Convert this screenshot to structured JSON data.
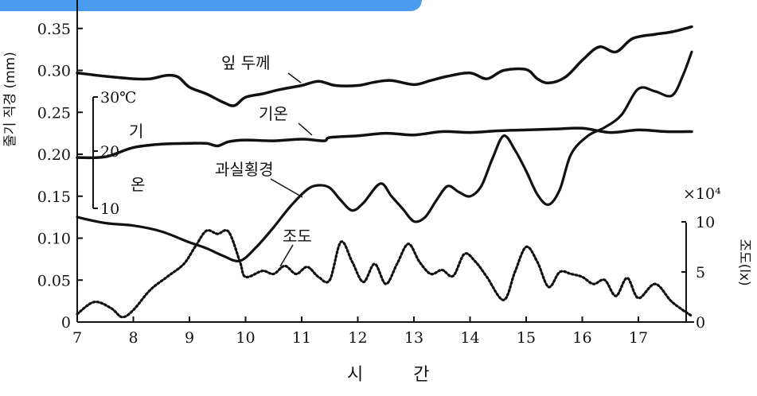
{
  "banner_color": "#4a9cf0",
  "chart_data": {
    "type": "line",
    "xlabel": "시 간",
    "xlim": [
      7,
      18
    ],
    "x_ticks": [
      "7",
      "8",
      "9",
      "10",
      "11",
      "12",
      "13",
      "14",
      "15",
      "16",
      "17"
    ],
    "ylim": [
      0,
      0.37
    ],
    "y_ticks": [
      "0",
      "0.05",
      "0.10",
      "0.15",
      "0.20",
      "0.25",
      "0.30",
      "0.35"
    ],
    "ylabel": "줄기 직경 (mm)",
    "temp_axis": {
      "label_top": "기",
      "label_bottom": "온",
      "ticks": [
        "30℃",
        "20",
        "10"
      ]
    },
    "lux_axis": {
      "label": "조도(lx)",
      "multiplier": "×10⁴",
      "ticks": [
        "10",
        "5",
        "0"
      ]
    },
    "annotations": [
      "잎 두께",
      "기온",
      "과실횡경",
      "조도"
    ],
    "series": [
      {
        "name": "잎 두께",
        "x": [
          7.0,
          7.5,
          8.0,
          8.3,
          8.6,
          8.8,
          9.0,
          9.3,
          9.6,
          9.8,
          10.0,
          10.3,
          10.6,
          11.0,
          11.3,
          11.6,
          12.0,
          12.3,
          12.6,
          13.0,
          13.3,
          13.6,
          14.0,
          14.3,
          14.6,
          15.0,
          15.2,
          15.4,
          15.7,
          16.0,
          16.3,
          16.6,
          16.9,
          17.3,
          17.6,
          17.95
        ],
        "y": [
          0.297,
          0.293,
          0.29,
          0.29,
          0.294,
          0.292,
          0.28,
          0.272,
          0.262,
          0.258,
          0.268,
          0.272,
          0.277,
          0.282,
          0.287,
          0.282,
          0.282,
          0.286,
          0.288,
          0.283,
          0.288,
          0.293,
          0.297,
          0.29,
          0.3,
          0.301,
          0.29,
          0.285,
          0.292,
          0.312,
          0.328,
          0.322,
          0.338,
          0.343,
          0.346,
          0.352
        ]
      },
      {
        "name": "기온",
        "x": [
          7.0,
          7.5,
          8.0,
          8.5,
          9.0,
          9.3,
          9.5,
          9.7,
          10.0,
          10.5,
          11.0,
          11.4,
          11.5,
          12.0,
          12.5,
          13.0,
          13.5,
          14.0,
          14.5,
          15.0,
          15.5,
          16.0,
          16.5,
          17.0,
          17.5,
          17.95
        ],
        "y": [
          0.196,
          0.197,
          0.208,
          0.212,
          0.213,
          0.213,
          0.21,
          0.215,
          0.217,
          0.216,
          0.218,
          0.216,
          0.22,
          0.222,
          0.225,
          0.223,
          0.227,
          0.226,
          0.228,
          0.229,
          0.23,
          0.231,
          0.226,
          0.229,
          0.227,
          0.227
        ]
      },
      {
        "name": "과실횡경",
        "x": [
          7.0,
          7.5,
          8.0,
          8.5,
          9.0,
          9.3,
          9.6,
          9.9,
          10.2,
          10.5,
          10.8,
          11.1,
          11.3,
          11.5,
          11.7,
          11.9,
          12.1,
          12.4,
          12.6,
          12.8,
          13.0,
          13.2,
          13.4,
          13.6,
          13.8,
          14.0,
          14.2,
          14.4,
          14.6,
          14.8,
          15.0,
          15.2,
          15.4,
          15.6,
          15.8,
          16.1,
          16.4,
          16.7,
          17.0,
          17.3,
          17.6,
          17.8,
          17.95
        ],
        "y": [
          0.125,
          0.118,
          0.115,
          0.108,
          0.095,
          0.088,
          0.079,
          0.073,
          0.09,
          0.113,
          0.138,
          0.158,
          0.163,
          0.16,
          0.145,
          0.133,
          0.142,
          0.165,
          0.15,
          0.135,
          0.12,
          0.125,
          0.145,
          0.162,
          0.155,
          0.15,
          0.162,
          0.195,
          0.222,
          0.205,
          0.18,
          0.152,
          0.14,
          0.158,
          0.2,
          0.222,
          0.232,
          0.247,
          0.278,
          0.275,
          0.27,
          0.295,
          0.322
        ]
      },
      {
        "name": "조도",
        "x": [
          7.0,
          7.3,
          7.6,
          7.8,
          8.0,
          8.3,
          8.6,
          8.9,
          9.1,
          9.3,
          9.5,
          9.7,
          9.9,
          10.0,
          10.3,
          10.5,
          10.7,
          10.9,
          11.1,
          11.3,
          11.5,
          11.7,
          11.9,
          12.1,
          12.3,
          12.5,
          12.7,
          12.9,
          13.1,
          13.3,
          13.5,
          13.7,
          13.9,
          14.1,
          14.3,
          14.6,
          14.8,
          15.0,
          15.2,
          15.4,
          15.6,
          15.8,
          16.0,
          16.2,
          16.4,
          16.6,
          16.8,
          17.0,
          17.3,
          17.6,
          17.95
        ],
        "y": [
          0.8,
          2.0,
          1.4,
          0.5,
          1.2,
          3.2,
          4.5,
          5.8,
          7.5,
          9.1,
          8.8,
          9.0,
          6.0,
          4.5,
          5.1,
          4.8,
          5.6,
          4.8,
          5.5,
          4.5,
          4.2,
          8.0,
          6.0,
          4.0,
          5.8,
          3.8,
          5.8,
          7.8,
          6.0,
          4.8,
          5.2,
          4.6,
          6.8,
          6.0,
          4.5,
          2.2,
          5.0,
          7.5,
          6.0,
          3.5,
          5.0,
          4.8,
          4.5,
          3.8,
          4.2,
          2.6,
          4.4,
          2.4,
          3.8,
          2.0,
          0.6
        ]
      }
    ]
  }
}
